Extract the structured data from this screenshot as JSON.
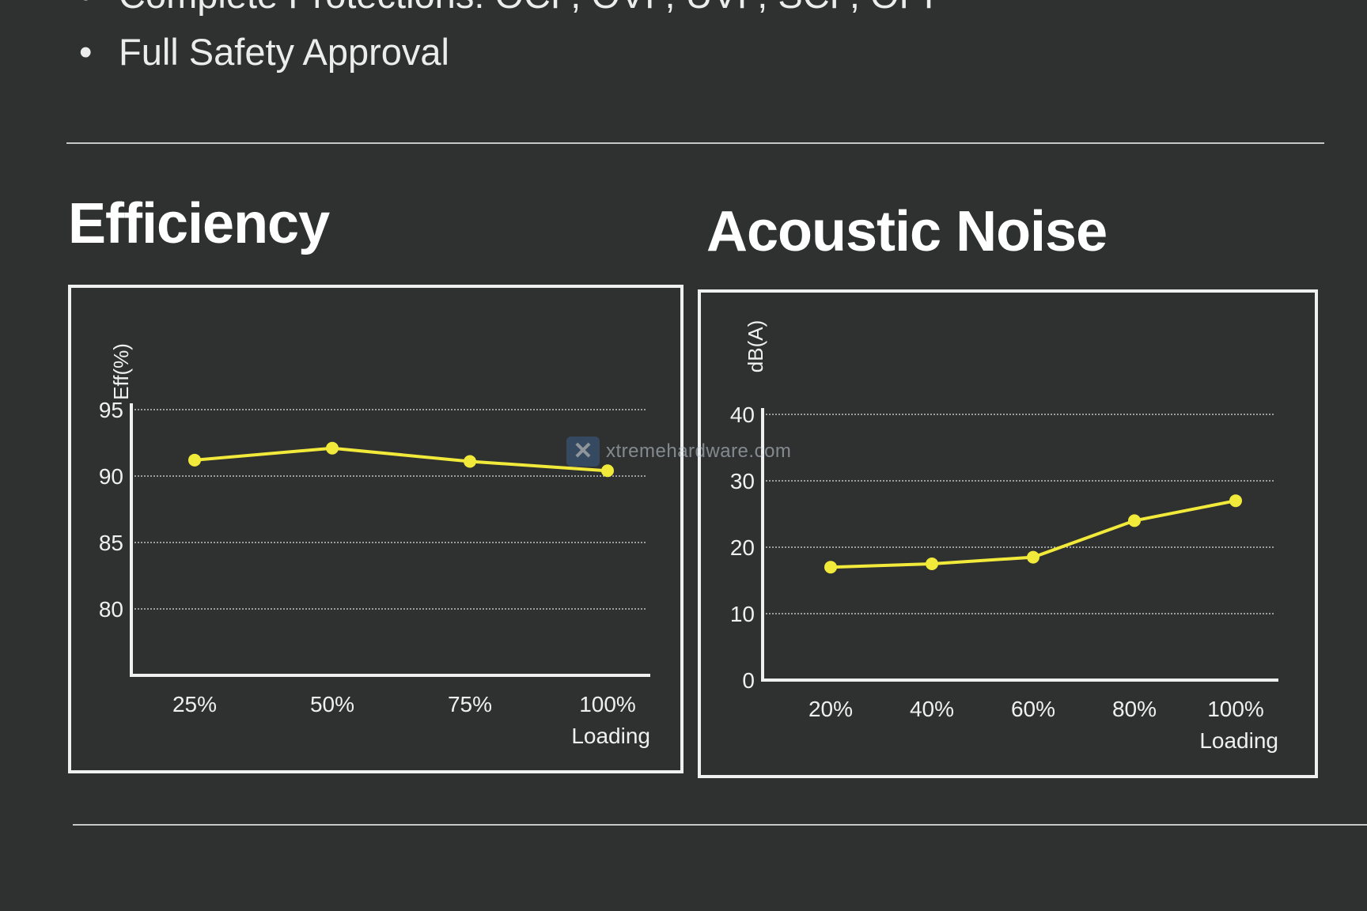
{
  "features": [
    {
      "text": "Complete Protections: OCP, OVP, UVP, SCP, OPP"
    },
    {
      "text": "Full Safety Approval"
    }
  ],
  "bullet_glyph": "•",
  "watermark": "xtremehardware.com",
  "line_color": "#f2ea3a",
  "chart_data": [
    {
      "type": "line",
      "title": "Efficiency",
      "xlabel": "Loading",
      "ylabel": "Eff(%)",
      "categories": [
        "25%",
        "50%",
        "75%",
        "100%"
      ],
      "values": [
        91.2,
        92.1,
        91.1,
        90.4
      ],
      "yticks": [
        80,
        85,
        90,
        95
      ],
      "ylim": [
        75,
        95
      ],
      "grid": true,
      "legend": "none"
    },
    {
      "type": "line",
      "title": "Acoustic Noise",
      "xlabel": "Loading",
      "ylabel": "dB(A)",
      "categories": [
        "20%",
        "40%",
        "60%",
        "80%",
        "100%"
      ],
      "values": [
        17,
        17.5,
        18.5,
        24,
        27
      ],
      "yticks": [
        0,
        10,
        20,
        30,
        40
      ],
      "ylim": [
        0,
        40
      ],
      "grid": true,
      "legend": "none"
    }
  ]
}
